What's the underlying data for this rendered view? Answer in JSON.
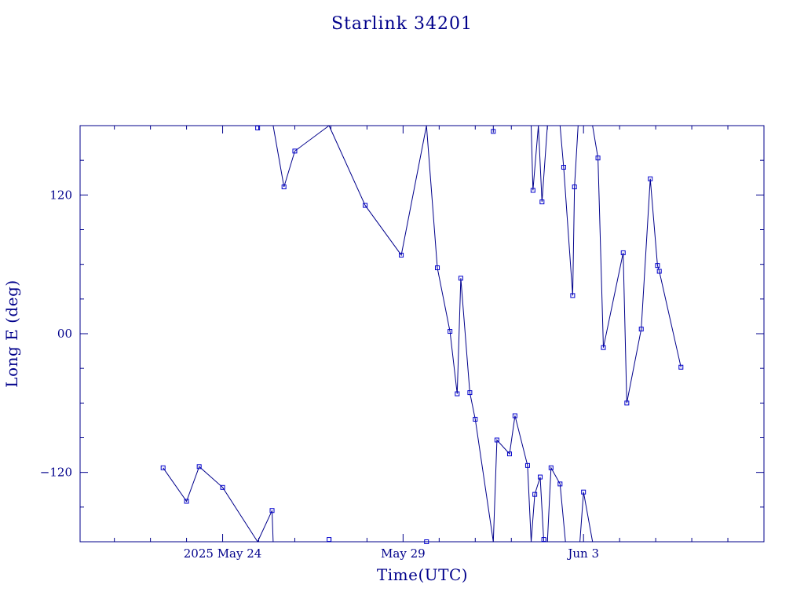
{
  "chart_data": {
    "type": "line",
    "title": "Starlink 34201",
    "xlabel": "Time(UTC)",
    "ylabel": "Long E (deg)",
    "x_ticks": [
      {
        "x": 0,
        "label": "2025 May 24"
      },
      {
        "x": 5,
        "label": "May 29"
      },
      {
        "x": 10,
        "label": "Jun  3"
      }
    ],
    "y_ticks": [
      {
        "y": -120,
        "label": "−120"
      },
      {
        "y": 0,
        "label": "00"
      },
      {
        "y": 120,
        "label": "120"
      }
    ],
    "xlim": [
      -3.95,
      15.0
    ],
    "ylim": [
      -180,
      180
    ],
    "grid": false,
    "line_color": "#00008b",
    "marker_color": "#0000cd",
    "x_note": "x values are days relative to 2025 May 24 00:00 UTC",
    "series": [
      {
        "points": [
          [
            -1.65,
            -116
          ],
          [
            -1.0,
            -145
          ],
          [
            -0.65,
            -115
          ],
          [
            0.0,
            -133
          ],
          [
            0.97,
            -180
          ]
        ]
      },
      {
        "points": [
          [
            0.97,
            180
          ],
          [
            1.4,
            180
          ],
          [
            1.7,
            127
          ],
          [
            2.0,
            158
          ],
          [
            2.95,
            180
          ]
        ]
      },
      {
        "points": [
          [
            1.4,
            -180
          ],
          [
            0.97,
            -180
          ]
        ]
      },
      {
        "points": [
          [
            0.97,
            -180
          ],
          [
            1.37,
            -153
          ],
          [
            1.4,
            -180
          ]
        ]
      },
      {
        "points": [
          [
            2.95,
            180
          ],
          [
            3.95,
            111
          ],
          [
            4.95,
            68
          ],
          [
            5.65,
            180
          ],
          [
            5.95,
            57
          ],
          [
            6.3,
            2
          ],
          [
            6.5,
            -52
          ],
          [
            6.6,
            48
          ],
          [
            6.85,
            -51
          ],
          [
            7.0,
            -74
          ],
          [
            7.5,
            -180
          ]
        ]
      },
      {
        "points": [
          [
            7.5,
            174
          ],
          [
            7.5,
            180
          ]
        ]
      },
      {
        "points": [
          [
            7.5,
            -180
          ],
          [
            7.6,
            -92
          ],
          [
            7.95,
            -104
          ],
          [
            8.1,
            -71
          ],
          [
            8.45,
            -114
          ],
          [
            8.55,
            -180
          ]
        ]
      },
      {
        "points": [
          [
            8.55,
            180
          ],
          [
            8.6,
            124
          ],
          [
            8.75,
            180
          ],
          [
            8.85,
            114
          ],
          [
            9.0,
            180
          ],
          [
            9.35,
            180
          ],
          [
            9.45,
            144
          ],
          [
            9.7,
            33
          ],
          [
            9.75,
            127
          ],
          [
            9.85,
            180
          ],
          [
            10.25,
            180
          ],
          [
            10.4,
            152
          ],
          [
            10.55,
            -12
          ],
          [
            11.1,
            70
          ],
          [
            11.2,
            -60
          ],
          [
            11.6,
            4
          ],
          [
            11.85,
            134
          ],
          [
            12.05,
            59
          ],
          [
            12.1,
            54
          ],
          [
            12.7,
            -29
          ]
        ]
      },
      {
        "points": [
          [
            8.55,
            -180
          ],
          [
            8.65,
            -139
          ],
          [
            8.8,
            -124
          ],
          [
            8.9,
            -180
          ],
          [
            9.0,
            -180
          ],
          [
            9.1,
            -116
          ],
          [
            9.35,
            -130
          ],
          [
            9.5,
            -180
          ]
        ]
      },
      {
        "points": [
          [
            9.5,
            -180
          ],
          [
            9.55,
            -180
          ]
        ]
      },
      {
        "points": [
          [
            9.9,
            -180
          ],
          [
            10.0,
            -137
          ],
          [
            10.25,
            -180
          ]
        ]
      }
    ],
    "markers": [
      [
        -1.65,
        -116
      ],
      [
        -1.0,
        -145
      ],
      [
        -0.65,
        -115
      ],
      [
        0.0,
        -133
      ],
      [
        1.37,
        -153
      ],
      [
        0.97,
        178
      ],
      [
        1.7,
        127
      ],
      [
        2.0,
        158
      ],
      [
        2.95,
        -178
      ],
      [
        3.95,
        111
      ],
      [
        4.95,
        68
      ],
      [
        5.65,
        -180
      ],
      [
        5.95,
        57
      ],
      [
        6.3,
        2
      ],
      [
        6.5,
        -52
      ],
      [
        6.6,
        48
      ],
      [
        6.85,
        -51
      ],
      [
        7.0,
        -74
      ],
      [
        7.5,
        175
      ],
      [
        7.6,
        -92
      ],
      [
        7.95,
        -104
      ],
      [
        8.1,
        -71
      ],
      [
        8.45,
        -114
      ],
      [
        8.6,
        124
      ],
      [
        8.65,
        -139
      ],
      [
        8.8,
        -124
      ],
      [
        8.85,
        114
      ],
      [
        8.9,
        -178
      ],
      [
        9.1,
        -116
      ],
      [
        9.35,
        -130
      ],
      [
        9.45,
        144
      ],
      [
        9.7,
        33
      ],
      [
        9.75,
        127
      ],
      [
        10.0,
        -137
      ],
      [
        10.4,
        152
      ],
      [
        10.55,
        -12
      ],
      [
        11.1,
        70
      ],
      [
        11.2,
        -60
      ],
      [
        11.6,
        4
      ],
      [
        11.85,
        134
      ],
      [
        12.05,
        59
      ],
      [
        12.1,
        54
      ],
      [
        12.7,
        -29
      ]
    ]
  }
}
